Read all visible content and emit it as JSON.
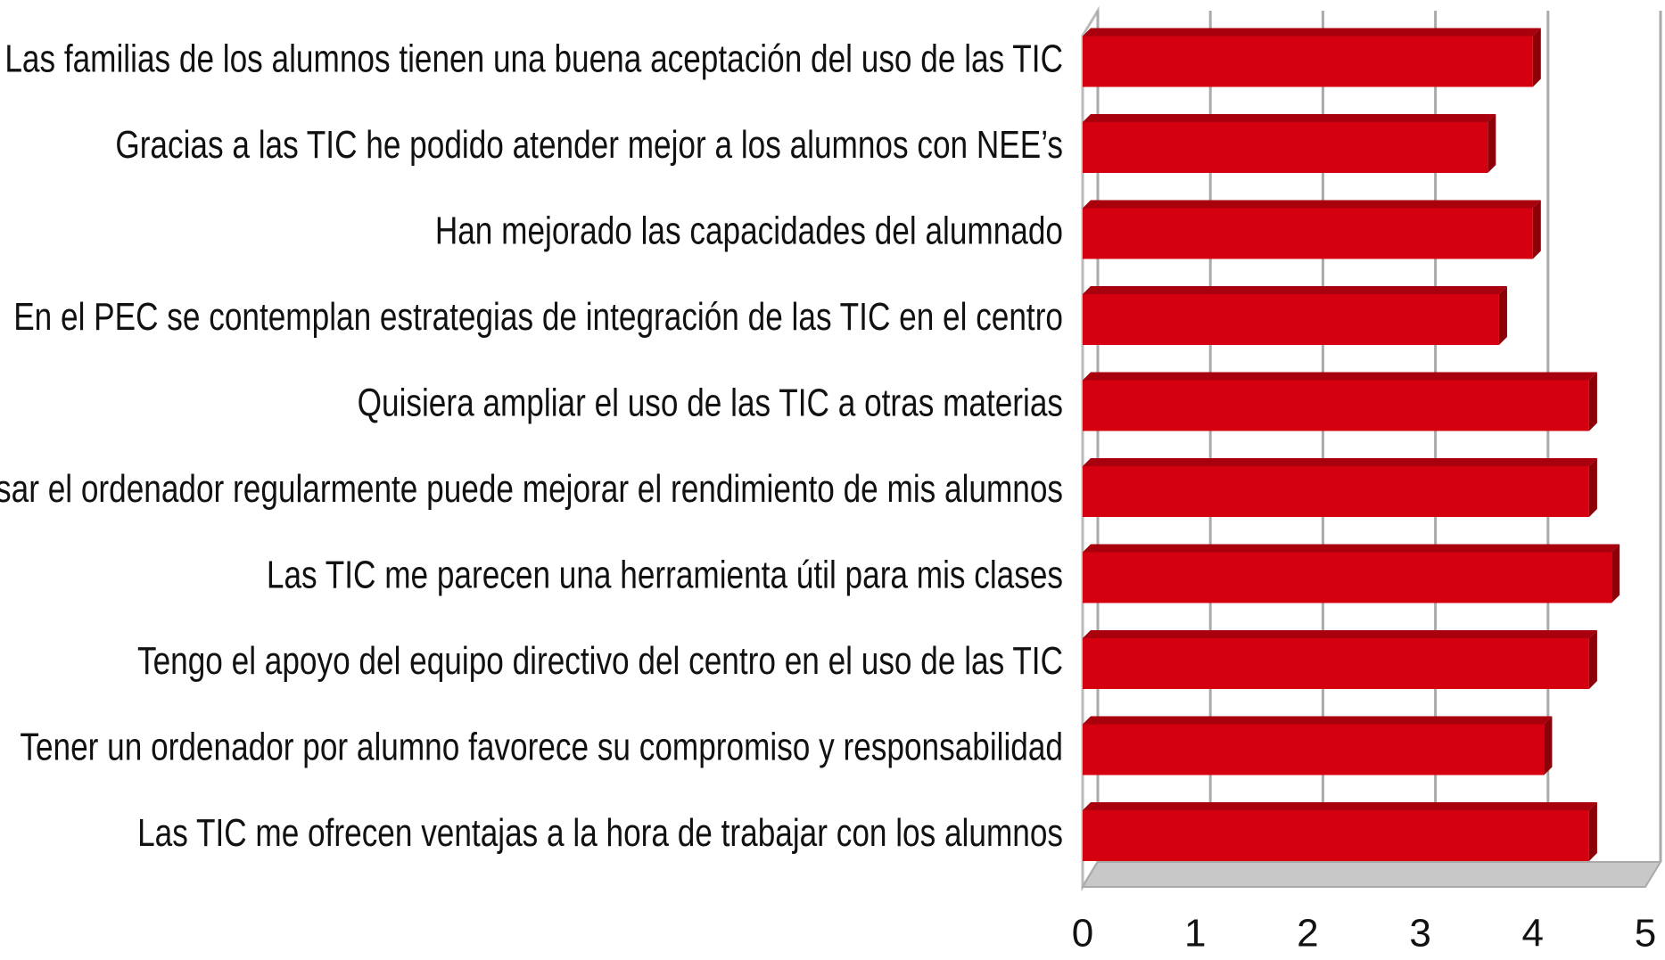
{
  "chart_data": {
    "type": "bar",
    "orientation": "horizontal",
    "color": "#d40010",
    "categories": [
      "Las familias de los alumnos tienen una buena aceptación del uso de las TIC",
      "Gracias a las TIC he podido atender mejor a los alumnos con NEE’s",
      "Han mejorado las capacidades del alumnado",
      "En el PEC se contemplan estrategias de integración de las TIC en el centro",
      "Quisiera ampliar el uso de las TIC a otras materias",
      "usar el ordenador regularmente puede mejorar el rendimiento de mis alumnos",
      "Las TIC me parecen una herramienta útil para mis clases",
      "Tengo el apoyo del equipo directivo del centro en el uso de las TIC",
      "Tener un ordenador por alumno favorece su compromiso y responsabilidad",
      "Las TIC me ofrecen ventajas a la hora de trabajar con los alumnos"
    ],
    "values": [
      4.0,
      3.6,
      4.0,
      3.7,
      4.5,
      4.5,
      4.7,
      4.5,
      4.1,
      4.5
    ],
    "xlim": [
      0,
      5
    ],
    "xticks": [
      0,
      1,
      2,
      3,
      4,
      5
    ],
    "grid": true
  }
}
